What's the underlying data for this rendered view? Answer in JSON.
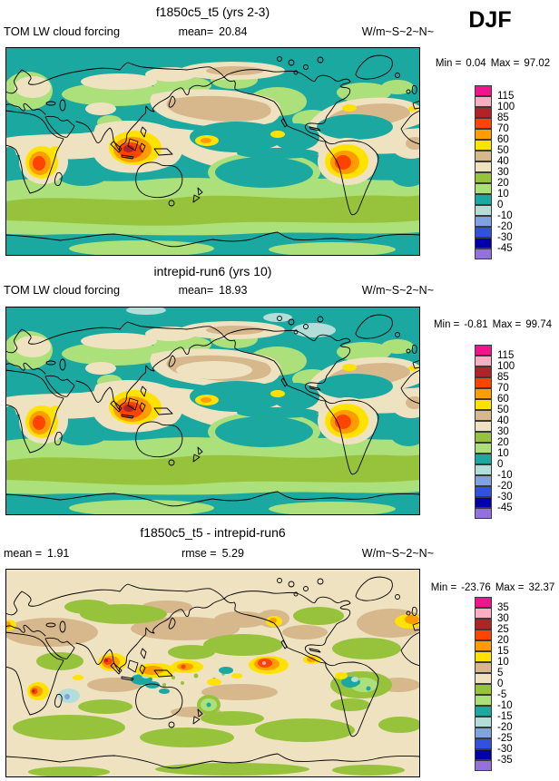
{
  "season": "DJF",
  "colorbar_colors": [
    "#F2148C",
    "#FBADC3",
    "#B22328",
    "#FF4400",
    "#FF9C00",
    "#FFE200",
    "#D6B88C",
    "#EFE2C0",
    "#97C33C",
    "#ACE07A",
    "#1BA8A0",
    "#B2DDD8",
    "#7FA2E3",
    "#3052DE",
    "#0000AA",
    "#9472DB"
  ],
  "panels": [
    {
      "title": "f1850c5_t5 (yrs 2-3)",
      "var_label": "TOM LW cloud forcing",
      "mean_label": "mean=",
      "mean_value": "20.84",
      "units": "W/m~S~2~N~",
      "min_label": "Min =",
      "min_value": "0.04",
      "max_label": "Max =",
      "max_value": "97.02",
      "levels": [
        "115",
        "100",
        "85",
        "70",
        "60",
        "50",
        "40",
        "30",
        "20",
        "10",
        "0",
        "-10",
        "-20",
        "-30",
        "-45"
      ]
    },
    {
      "title": "intrepid-run6 (yrs 10)",
      "var_label": "TOM LW cloud forcing",
      "mean_label": "mean=",
      "mean_value": "18.93",
      "units": "W/m~S~2~N~",
      "min_label": "Min =",
      "min_value": "-0.81",
      "max_label": "Max =",
      "max_value": "99.74",
      "levels": [
        "115",
        "100",
        "85",
        "70",
        "60",
        "50",
        "40",
        "30",
        "20",
        "10",
        "0",
        "-10",
        "-20",
        "-30",
        "-45"
      ]
    },
    {
      "title": "f1850c5_t5 - intrepid-run6",
      "mean_label": "mean =",
      "mean_value": "1.91",
      "rmse_label": "rmse =",
      "rmse_value": "5.29",
      "units": "W/m~S~2~N~",
      "min_label": "Min =",
      "min_value": "-23.76",
      "max_label": "Max =",
      "max_value": "32.37",
      "levels": [
        "35",
        "30",
        "25",
        "20",
        "15",
        "10",
        "5",
        "0",
        "-5",
        "-10",
        "-15",
        "-20",
        "-25",
        "-30",
        "-35"
      ]
    }
  ],
  "chart_data": [
    {
      "type": "heatmap",
      "title": "f1850c5_t5 (yrs 2-3)",
      "variable": "TOM LW cloud forcing",
      "season": "DJF",
      "units": "W/m~S~2~N~ (W/m^2)",
      "projection": "global cylindrical equidistant map, 0-360E, coastlines overlaid",
      "mean": 20.84,
      "min": 0.04,
      "max": 97.02,
      "contour_levels": [
        -45,
        -30,
        -20,
        -10,
        0,
        10,
        20,
        30,
        40,
        50,
        60,
        70,
        85,
        100,
        115
      ],
      "palette_high_to_low": [
        "#F2148C",
        "#FBADC3",
        "#B22328",
        "#FF4400",
        "#FF9C00",
        "#FFE200",
        "#D6B88C",
        "#EFE2C0",
        "#97C33C",
        "#ACE07A",
        "#1BA8A0",
        "#B2DDD8",
        "#7FA2E3",
        "#3052DE",
        "#0000AA",
        "#9472DB"
      ],
      "notes": "High values (60-100, orange/red) over tropical convection: Maritime Continent, southern Africa, Amazonia; mid values (30-50, tan/beige) along ITCZ/SPCZ and N Pacific/N Atlantic storm tracks; low values (0-20, teal/green) over subtropical oceans and polar regions."
    },
    {
      "type": "heatmap",
      "title": "intrepid-run6 (yrs 10)",
      "variable": "TOM LW cloud forcing",
      "season": "DJF",
      "units": "W/m~S~2~N~ (W/m^2)",
      "projection": "global cylindrical equidistant map, 0-360E, coastlines overlaid",
      "mean": 18.93,
      "min": -0.81,
      "max": 99.74,
      "contour_levels": [
        -45,
        -30,
        -20,
        -10,
        0,
        10,
        20,
        30,
        40,
        50,
        60,
        70,
        85,
        100,
        115
      ],
      "palette_high_to_low": [
        "#F2148C",
        "#FBADC3",
        "#B22328",
        "#FF4400",
        "#FF9C00",
        "#FFE200",
        "#D6B88C",
        "#EFE2C0",
        "#97C33C",
        "#ACE07A",
        "#1BA8A0",
        "#B2DDD8",
        "#7FA2E3",
        "#3052DE",
        "#0000AA",
        "#9472DB"
      ],
      "notes": "Spatial pattern very similar to f1850c5_t5 panel; slightly weaker N Pacific maximum; small pale-blue (negative) patches in the Arctic."
    },
    {
      "type": "heatmap",
      "title": "f1850c5_t5 - intrepid-run6",
      "kind": "difference map",
      "season": "DJF",
      "units": "W/m~S~2~N~ (W/m^2)",
      "projection": "global cylindrical equidistant map, 0-360E, coastlines overlaid",
      "mean": 1.91,
      "rmse": 5.29,
      "min": -23.76,
      "max": 32.37,
      "contour_levels": [
        -35,
        -30,
        -25,
        -20,
        -15,
        -10,
        -5,
        0,
        5,
        10,
        15,
        20,
        25,
        30,
        35
      ],
      "palette_high_to_low": [
        "#F2148C",
        "#FBADC3",
        "#B22328",
        "#FF4400",
        "#FF9C00",
        "#FFE200",
        "#D6B88C",
        "#EFE2C0",
        "#97C33C",
        "#ACE07A",
        "#1BA8A0",
        "#B2DDD8",
        "#7FA2E3",
        "#3052DE",
        "#0000AA",
        "#9472DB"
      ],
      "notes": "Mostly near-zero (beige 0-5) with green patches (-5 to -10) in mid-latitudes; positive spots (+10 to +30, yellow/orange/red) along tropical convection zones and storm tracks; scattered negative teal/blue spots (-10 to -25) in the tropics."
    }
  ]
}
